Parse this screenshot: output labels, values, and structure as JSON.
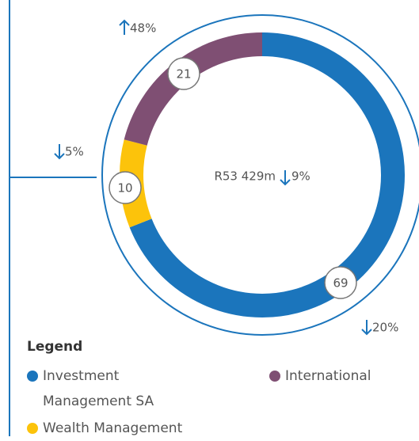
{
  "chart_data": {
    "type": "donut",
    "center_label": "R53 429m",
    "center_change": "9%",
    "center_direction": "down",
    "categories": [
      "Investment Management SA",
      "Wealth Management",
      "International"
    ],
    "values": [
      69,
      10,
      21
    ],
    "colors": [
      "#1b75bc",
      "#fcc30b",
      "#7f4f73"
    ],
    "annotations": [
      {
        "text": "20%",
        "direction": "down"
      },
      {
        "text": "5%",
        "direction": "down"
      },
      {
        "text": "48%",
        "direction": "up"
      }
    ],
    "legend_title": "Legend"
  }
}
